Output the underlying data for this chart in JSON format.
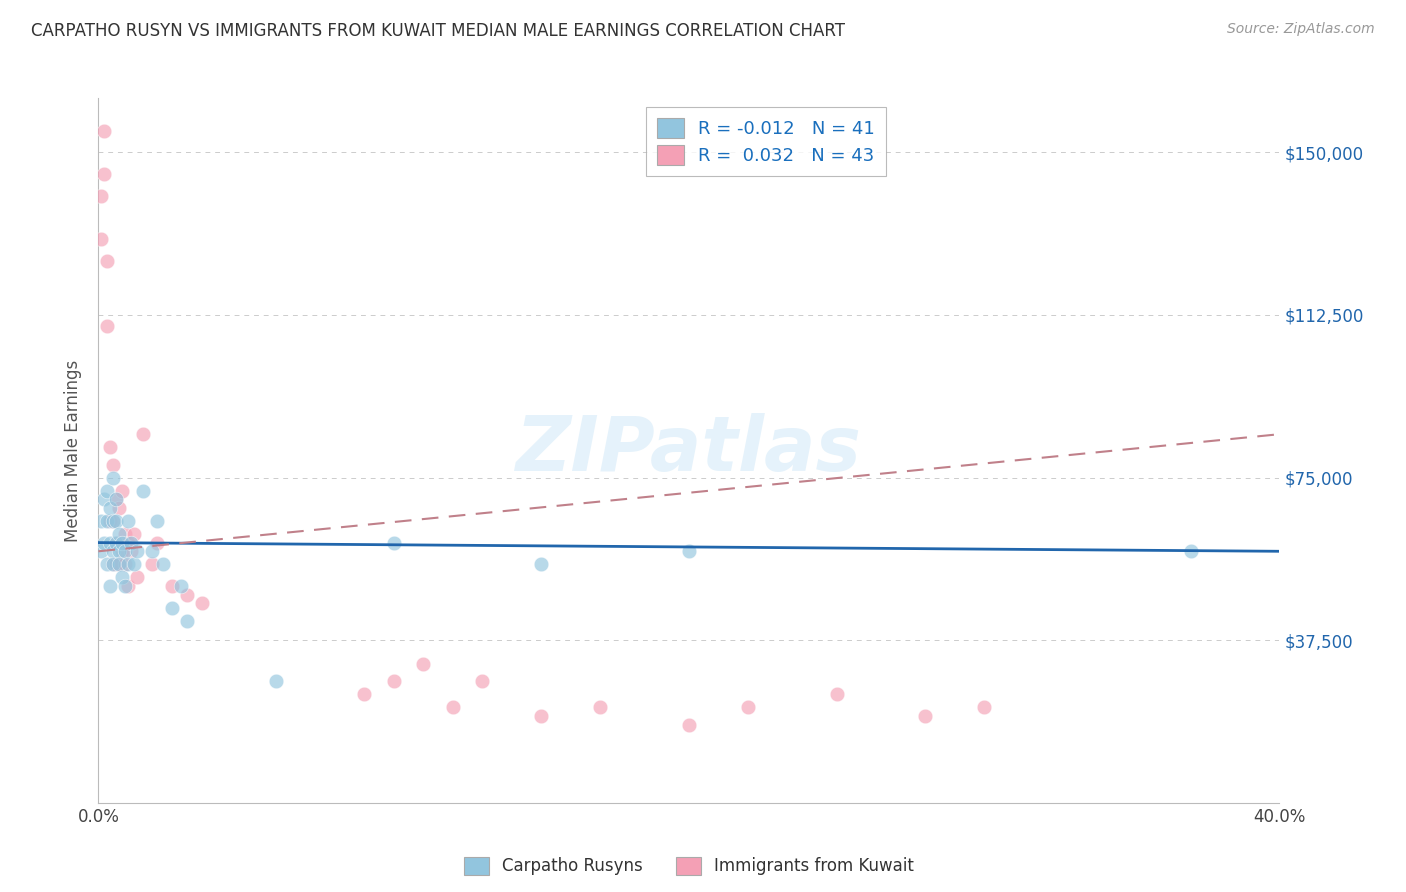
{
  "title": "CARPATHO RUSYN VS IMMIGRANTS FROM KUWAIT MEDIAN MALE EARNINGS CORRELATION CHART",
  "source": "Source: ZipAtlas.com",
  "ylabel": "Median Male Earnings",
  "xlim": [
    0.0,
    0.4
  ],
  "ylim": [
    0,
    162500
  ],
  "yticks": [
    0,
    37500,
    75000,
    112500,
    150000
  ],
  "ytick_labels": [
    "",
    "$37,500",
    "$75,000",
    "$112,500",
    "$150,000"
  ],
  "xticks": [
    0.0,
    0.05,
    0.1,
    0.15,
    0.2,
    0.25,
    0.3,
    0.35,
    0.4
  ],
  "series1_label": "Carpatho Rusyns",
  "series2_label": "Immigrants from Kuwait",
  "series1_R": "-0.012",
  "series1_N": "41",
  "series2_R": "0.032",
  "series2_N": "43",
  "series1_color": "#92c5de",
  "series2_color": "#f4a0b5",
  "series1_line_color": "#2166ac",
  "series2_line_color": "#d6604d",
  "series2_line_color_dash": "#c0808a",
  "background_color": "#ffffff",
  "watermark": "ZIPatlas",
  "series1_x": [
    0.001,
    0.001,
    0.002,
    0.002,
    0.003,
    0.003,
    0.003,
    0.004,
    0.004,
    0.004,
    0.005,
    0.005,
    0.005,
    0.005,
    0.006,
    0.006,
    0.006,
    0.007,
    0.007,
    0.007,
    0.008,
    0.008,
    0.009,
    0.009,
    0.01,
    0.01,
    0.011,
    0.012,
    0.013,
    0.015,
    0.018,
    0.02,
    0.022,
    0.025,
    0.028,
    0.03,
    0.06,
    0.1,
    0.15,
    0.2,
    0.37
  ],
  "series1_y": [
    58000,
    65000,
    70000,
    60000,
    72000,
    65000,
    55000,
    68000,
    60000,
    50000,
    75000,
    65000,
    58000,
    55000,
    70000,
    65000,
    60000,
    62000,
    58000,
    55000,
    60000,
    52000,
    58000,
    50000,
    65000,
    55000,
    60000,
    55000,
    58000,
    72000,
    58000,
    65000,
    55000,
    45000,
    50000,
    42000,
    28000,
    60000,
    55000,
    58000,
    58000
  ],
  "series2_x": [
    0.001,
    0.001,
    0.002,
    0.002,
    0.003,
    0.003,
    0.004,
    0.004,
    0.005,
    0.005,
    0.005,
    0.006,
    0.006,
    0.006,
    0.007,
    0.007,
    0.008,
    0.008,
    0.009,
    0.009,
    0.01,
    0.01,
    0.011,
    0.012,
    0.013,
    0.015,
    0.018,
    0.02,
    0.025,
    0.03,
    0.035,
    0.09,
    0.1,
    0.11,
    0.12,
    0.13,
    0.15,
    0.17,
    0.2,
    0.22,
    0.25,
    0.28,
    0.3
  ],
  "series2_y": [
    130000,
    140000,
    145000,
    155000,
    125000,
    110000,
    82000,
    65000,
    78000,
    65000,
    55000,
    70000,
    60000,
    55000,
    68000,
    55000,
    58000,
    72000,
    62000,
    55000,
    60000,
    50000,
    58000,
    62000,
    52000,
    85000,
    55000,
    60000,
    50000,
    48000,
    46000,
    25000,
    28000,
    32000,
    22000,
    28000,
    20000,
    22000,
    18000,
    22000,
    25000,
    20000,
    22000
  ],
  "series1_trend": [
    60000,
    59500
  ],
  "series2_trend": [
    60000,
    80000
  ]
}
